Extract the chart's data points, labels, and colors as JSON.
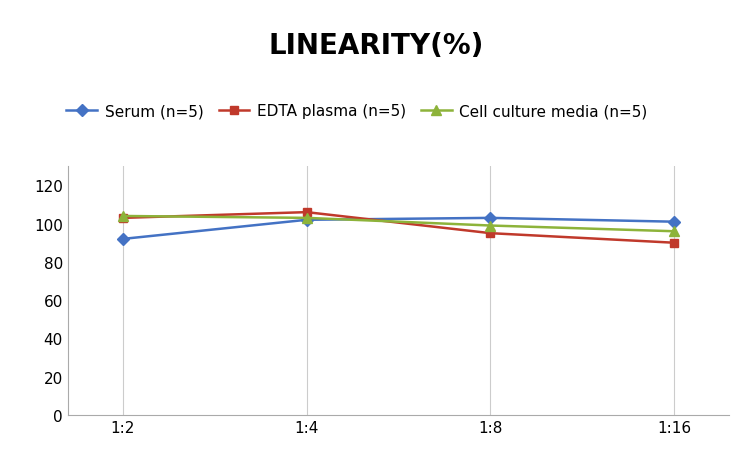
{
  "title": "LINEARITY(%)",
  "x_labels": [
    "1:2",
    "1:4",
    "1:8",
    "1:16"
  ],
  "series": [
    {
      "label": "Serum (n=5)",
      "values": [
        92,
        102,
        103,
        101
      ],
      "color": "#4472C4",
      "marker": "D",
      "markersize": 6
    },
    {
      "label": "EDTA plasma (n=5)",
      "values": [
        103,
        106,
        95,
        90
      ],
      "color": "#C0392B",
      "marker": "s",
      "markersize": 6
    },
    {
      "label": "Cell culture media (n=5)",
      "values": [
        104,
        103,
        99,
        96
      ],
      "color": "#8DB33A",
      "marker": "^",
      "markersize": 7
    }
  ],
  "ylim": [
    0,
    130
  ],
  "yticks": [
    0,
    20,
    40,
    60,
    80,
    100,
    120
  ],
  "title_fontsize": 20,
  "legend_fontsize": 11,
  "tick_fontsize": 11,
  "background_color": "#ffffff",
  "grid_color": "#cccccc"
}
